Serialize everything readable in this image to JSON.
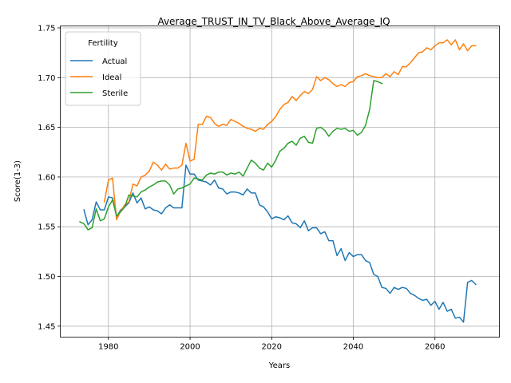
{
  "chart_data": {
    "type": "line",
    "title": "Average_TRUST_IN_TV_Black_Above_Average_IQ",
    "xlabel": "Years",
    "ylabel": "Score(1-3)",
    "xlim": [
      1968.2,
      2075.8
    ],
    "ylim": [
      1.439,
      1.752
    ],
    "xticks": [
      1980,
      2000,
      2020,
      2040,
      2060
    ],
    "yticks": [
      1.45,
      1.5,
      1.55,
      1.6,
      1.65,
      1.7,
      1.75
    ],
    "ytick_labels": [
      "1.45",
      "1.50",
      "1.55",
      "1.60",
      "1.65",
      "1.70",
      "1.75"
    ],
    "grid": true,
    "legend": {
      "title": "Fertility",
      "placement": "top-left"
    },
    "series": [
      {
        "name": "Actual",
        "color": "#1f77b4",
        "x": [
          1974,
          1975,
          1976,
          1977,
          1978,
          1979,
          1980,
          1981,
          1982,
          1983,
          1984,
          1985,
          1986,
          1987,
          1988,
          1989,
          1990,
          1991,
          1992,
          1993,
          1994,
          1995,
          1996,
          1997,
          1998,
          1999,
          2000,
          2001,
          2002,
          2003,
          2004,
          2005,
          2006,
          2007,
          2008,
          2009,
          2010,
          2011,
          2012,
          2013,
          2014,
          2015,
          2016,
          2017,
          2018,
          2019,
          2020,
          2021,
          2022,
          2023,
          2024,
          2025,
          2026,
          2027,
          2028,
          2029,
          2030,
          2031,
          2032,
          2033,
          2034,
          2035,
          2036,
          2037,
          2038,
          2039,
          2040,
          2041,
          2042,
          2043,
          2044,
          2045,
          2046,
          2047,
          2048,
          2049,
          2050,
          2051,
          2052,
          2053,
          2054,
          2055,
          2056,
          2057,
          2058,
          2059,
          2060,
          2061,
          2062,
          2063,
          2064,
          2065,
          2066,
          2067,
          2068,
          2069,
          2070
        ],
        "y": [
          1.567,
          1.552,
          1.557,
          1.575,
          1.567,
          1.567,
          1.58,
          1.579,
          1.56,
          1.567,
          1.57,
          1.574,
          1.584,
          1.574,
          1.579,
          1.568,
          1.57,
          1.567,
          1.566,
          1.563,
          1.569,
          1.572,
          1.569,
          1.569,
          1.569,
          1.612,
          1.603,
          1.603,
          1.597,
          1.596,
          1.595,
          1.592,
          1.597,
          1.589,
          1.588,
          1.583,
          1.585,
          1.585,
          1.584,
          1.582,
          1.588,
          1.584,
          1.584,
          1.572,
          1.57,
          1.565,
          1.558,
          1.56,
          1.559,
          1.557,
          1.561,
          1.554,
          1.553,
          1.549,
          1.556,
          1.546,
          1.549,
          1.549,
          1.543,
          1.545,
          1.536,
          1.536,
          1.521,
          1.528,
          1.516,
          1.524,
          1.52,
          1.522,
          1.522,
          1.516,
          1.514,
          1.502,
          1.5,
          1.489,
          1.488,
          1.483,
          1.489,
          1.487,
          1.489,
          1.488,
          1.483,
          1.481,
          1.478,
          1.476,
          1.477,
          1.471,
          1.475,
          1.467,
          1.474,
          1.465,
          1.467,
          1.458,
          1.459,
          1.454,
          1.494,
          1.496,
          1.492
        ]
      },
      {
        "name": "Ideal",
        "color": "#ff7f0e",
        "x": [
          1979,
          1980,
          1981,
          1982,
          1983,
          1984,
          1985,
          1986,
          1987,
          1988,
          1989,
          1990,
          1991,
          1992,
          1993,
          1994,
          1995,
          1996,
          1997,
          1998,
          1999,
          2000,
          2001,
          2002,
          2003,
          2004,
          2005,
          2006,
          2007,
          2008,
          2009,
          2010,
          2011,
          2012,
          2013,
          2014,
          2015,
          2016,
          2017,
          2018,
          2019,
          2020,
          2021,
          2022,
          2023,
          2024,
          2025,
          2026,
          2027,
          2028,
          2029,
          2030,
          2031,
          2032,
          2033,
          2034,
          2035,
          2036,
          2037,
          2038,
          2039,
          2040,
          2041,
          2042,
          2043,
          2044,
          2045,
          2046,
          2047,
          2048,
          2049,
          2050,
          2051,
          2052,
          2053,
          2054,
          2055,
          2056,
          2057,
          2058,
          2059,
          2060,
          2061,
          2062,
          2063,
          2064,
          2065,
          2066,
          2067,
          2068,
          2069,
          2070
        ],
        "y": [
          1.575,
          1.597,
          1.599,
          1.557,
          1.566,
          1.572,
          1.575,
          1.593,
          1.591,
          1.6,
          1.602,
          1.606,
          1.615,
          1.612,
          1.607,
          1.613,
          1.608,
          1.609,
          1.609,
          1.612,
          1.634,
          1.616,
          1.618,
          1.653,
          1.653,
          1.661,
          1.66,
          1.654,
          1.651,
          1.653,
          1.652,
          1.658,
          1.656,
          1.654,
          1.651,
          1.649,
          1.648,
          1.646,
          1.649,
          1.648,
          1.653,
          1.656,
          1.661,
          1.668,
          1.673,
          1.675,
          1.681,
          1.677,
          1.682,
          1.686,
          1.684,
          1.688,
          1.701,
          1.697,
          1.7,
          1.698,
          1.694,
          1.691,
          1.693,
          1.691,
          1.695,
          1.696,
          1.701,
          1.702,
          1.704,
          1.702,
          1.701,
          1.7,
          1.7,
          1.704,
          1.701,
          1.706,
          1.703,
          1.711,
          1.711,
          1.715,
          1.72,
          1.725,
          1.726,
          1.73,
          1.728,
          1.732,
          1.735,
          1.735,
          1.738,
          1.733,
          1.738,
          1.728,
          1.734,
          1.727,
          1.732,
          1.732
        ]
      },
      {
        "name": "Sterile",
        "color": "#2ca02c",
        "x": [
          1973,
          1974,
          1975,
          1976,
          1977,
          1978,
          1979,
          1980,
          1981,
          1982,
          1983,
          1984,
          1985,
          1986,
          1987,
          1988,
          1989,
          1990,
          1991,
          1992,
          1993,
          1994,
          1995,
          1996,
          1997,
          1998,
          1999,
          2000,
          2001,
          2002,
          2003,
          2004,
          2005,
          2006,
          2007,
          2008,
          2009,
          2010,
          2011,
          2012,
          2013,
          2014,
          2015,
          2016,
          2017,
          2018,
          2019,
          2020,
          2021,
          2022,
          2023,
          2024,
          2025,
          2026,
          2027,
          2028,
          2029,
          2030,
          2031,
          2032,
          2033,
          2034,
          2035,
          2036,
          2037,
          2038,
          2039,
          2040,
          2041,
          2042,
          2043,
          2044,
          2045,
          2046,
          2047
        ],
        "y": [
          1.555,
          1.553,
          1.547,
          1.549,
          1.568,
          1.556,
          1.558,
          1.57,
          1.577,
          1.561,
          1.565,
          1.57,
          1.582,
          1.581,
          1.58,
          1.585,
          1.587,
          1.59,
          1.592,
          1.595,
          1.596,
          1.596,
          1.592,
          1.583,
          1.588,
          1.589,
          1.591,
          1.593,
          1.599,
          1.598,
          1.597,
          1.602,
          1.604,
          1.603,
          1.605,
          1.605,
          1.602,
          1.604,
          1.603,
          1.605,
          1.601,
          1.609,
          1.617,
          1.614,
          1.609,
          1.607,
          1.614,
          1.61,
          1.617,
          1.626,
          1.629,
          1.634,
          1.636,
          1.632,
          1.639,
          1.641,
          1.635,
          1.634,
          1.649,
          1.65,
          1.647,
          1.641,
          1.646,
          1.649,
          1.648,
          1.649,
          1.646,
          1.647,
          1.642,
          1.645,
          1.652,
          1.668,
          1.697,
          1.696,
          1.694
        ]
      }
    ]
  }
}
